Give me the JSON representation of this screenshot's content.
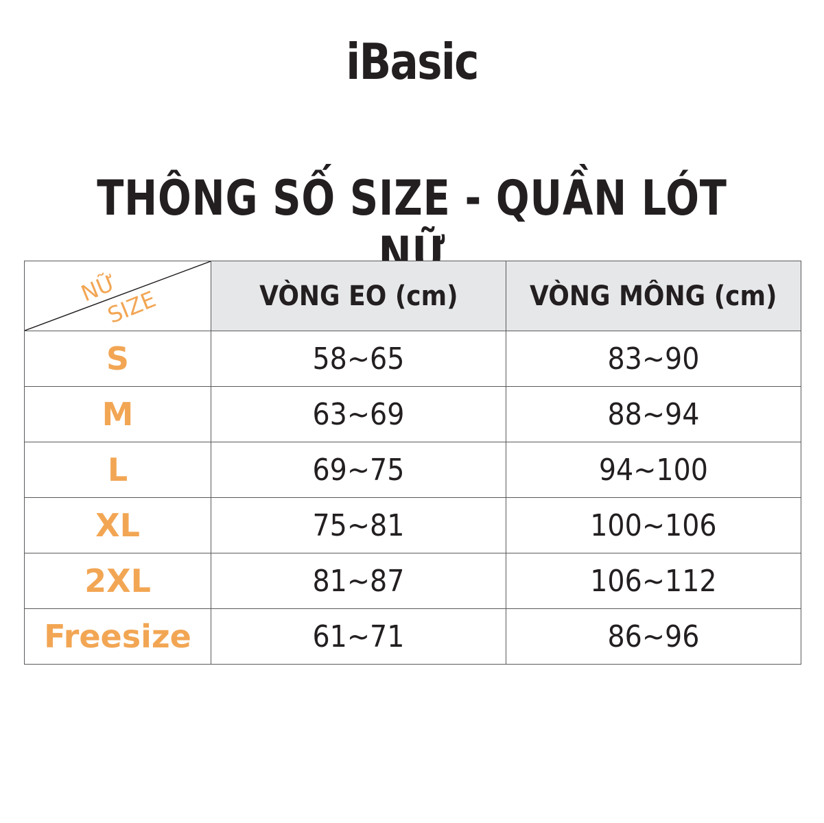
{
  "brand": "iBasic",
  "title": "THÔNG SỐ SIZE - QUẦN LÓT NỮ",
  "colors": {
    "accent": "#f2a654",
    "header_bg": "#e6e7e9",
    "text": "#231f20"
  },
  "table": {
    "corner": {
      "top": "NỮ",
      "bottom": "SIZE"
    },
    "headers": [
      "VÒNG EO (cm)",
      "VÒNG MÔNG (cm)"
    ],
    "rows": [
      {
        "size": "S",
        "waist": "58~65",
        "hip": "83~90"
      },
      {
        "size": "M",
        "waist": "63~69",
        "hip": "88~94"
      },
      {
        "size": "L",
        "waist": "69~75",
        "hip": "94~100"
      },
      {
        "size": "XL",
        "waist": "75~81",
        "hip": "100~106"
      },
      {
        "size": "2XL",
        "waist": "81~87",
        "hip": "106~112"
      },
      {
        "size": "Freesize",
        "waist": "61~71",
        "hip": "86~96"
      }
    ]
  }
}
